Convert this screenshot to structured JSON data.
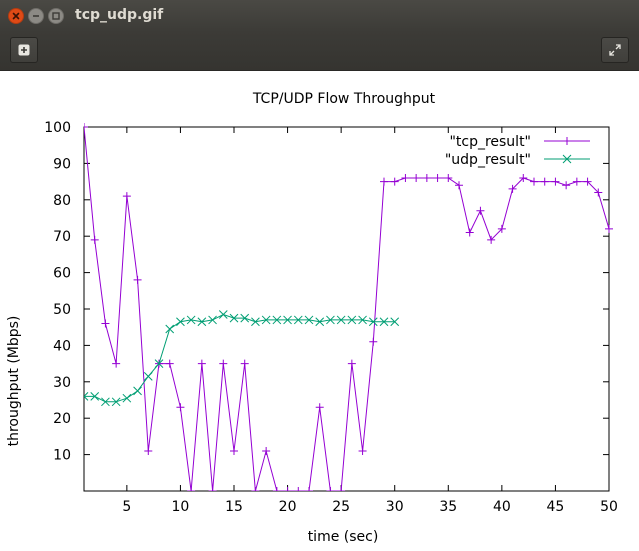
{
  "window": {
    "title": "tcp_udp.gif"
  },
  "toolbar": {
    "add_icon": "add-icon",
    "fullscreen_icon": "fullscreen-icon"
  },
  "chart_data": {
    "type": "line",
    "title": "TCP/UDP Flow Throughput",
    "xlabel": "time (sec)",
    "ylabel": "throughput (Mbps)",
    "xlim": [
      1,
      50
    ],
    "ylim": [
      0,
      100
    ],
    "xticks": [
      5,
      10,
      15,
      20,
      25,
      30,
      35,
      40,
      45,
      50
    ],
    "yticks": [
      10,
      20,
      30,
      40,
      50,
      60,
      70,
      80,
      90,
      100
    ],
    "grid": false,
    "legend": "top-right",
    "series": [
      {
        "name": "\"tcp_result\"",
        "color": "#9400d3",
        "marker": "plus",
        "x": [
          1,
          2,
          3,
          4,
          5,
          6,
          7,
          8,
          9,
          10,
          11,
          12,
          13,
          14,
          15,
          16,
          17,
          18,
          19,
          20,
          21,
          22,
          23,
          24,
          25,
          26,
          27,
          28,
          29,
          30,
          31,
          32,
          33,
          34,
          35,
          36,
          37,
          38,
          39,
          40,
          41,
          42,
          43,
          44,
          45,
          46,
          47,
          48,
          49,
          50
        ],
        "y": [
          100,
          69,
          46,
          35,
          81,
          58,
          11,
          35,
          35,
          23,
          0,
          35,
          0,
          35,
          11,
          35,
          0,
          11,
          0,
          0,
          0,
          0,
          23,
          0,
          0,
          35,
          11,
          41,
          85,
          85,
          86,
          86,
          86,
          86,
          86,
          84,
          71,
          77,
          69,
          72,
          83,
          86,
          85,
          85,
          85,
          84,
          85,
          85,
          82,
          72
        ]
      },
      {
        "name": "\"udp_result\"",
        "color": "#009e73",
        "marker": "cross",
        "x": [
          1,
          2,
          3,
          4,
          5,
          6,
          7,
          8,
          9,
          10,
          11,
          12,
          13,
          14,
          15,
          16,
          17,
          18,
          19,
          20,
          21,
          22,
          23,
          24,
          25,
          26,
          27,
          28,
          29,
          30
        ],
        "y": [
          26,
          26,
          24.5,
          24.5,
          25.5,
          27.5,
          31.5,
          35,
          44.5,
          46.5,
          47,
          46.5,
          47,
          48.5,
          47.5,
          47.5,
          46.5,
          47,
          47,
          47,
          47,
          47,
          46.5,
          47,
          47,
          47,
          47,
          46.5,
          46.5,
          46.5
        ]
      }
    ]
  }
}
